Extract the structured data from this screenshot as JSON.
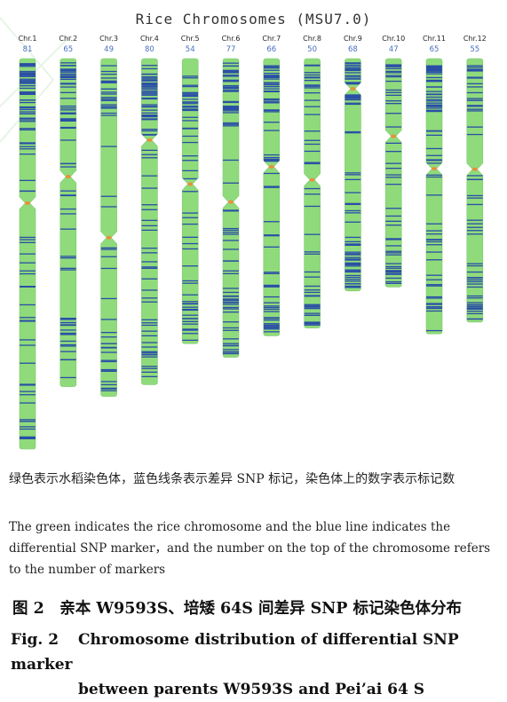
{
  "figure": {
    "title": "Rice Chromosomes (MSU7.0)",
    "chromosome_color": "#8fdb7c",
    "marker_color": "#2b4fa6",
    "centromere_color": "#e8903a"
  },
  "chart_data": {
    "type": "chromosome_ideogram",
    "chromosomes": [
      {
        "name": "Chr.1",
        "count": "81",
        "length": 10,
        "centromere": 0.37
      },
      {
        "name": "Chr.2",
        "count": "65",
        "length": 8.4,
        "centromere": 0.36
      },
      {
        "name": "Chr.3",
        "count": "49",
        "length": 8.65,
        "centromere": 0.53
      },
      {
        "name": "Chr.4",
        "count": "80",
        "length": 8.35,
        "centromere": 0.25
      },
      {
        "name": "Chr.5",
        "count": "54",
        "length": 7.3,
        "centromere": 0.44
      },
      {
        "name": "Chr.6",
        "count": "77",
        "length": 7.65,
        "centromere": 0.48
      },
      {
        "name": "Chr.7",
        "count": "66",
        "length": 7.1,
        "centromere": 0.39
      },
      {
        "name": "Chr.8",
        "count": "50",
        "length": 6.9,
        "centromere": 0.45
      },
      {
        "name": "Chr.9",
        "count": "68",
        "length": 5.95,
        "centromere": 0.13
      },
      {
        "name": "Chr.10",
        "count": "47",
        "length": 5.85,
        "centromere": 0.34
      },
      {
        "name": "Chr.11",
        "count": "65",
        "length": 7.05,
        "centromere": 0.4
      },
      {
        "name": "Chr.12",
        "count": "55",
        "length": 6.75,
        "centromere": 0.42
      }
    ]
  },
  "caption": {
    "cn": "绿色表示水稻染色体，蓝色线条表示差异 SNP 标记，染色体上的数字表示标记数",
    "en": "The green indicates the rice chromosome and the blue line indicates the differential SNP marker，and the number on the top of the chromosome refers to the number of markers"
  },
  "figure_title": {
    "cn": "图 2　亲本 W9593S、培矮 64S 间差异 SNP 标记染色体分布",
    "en_num": "Fig. 2",
    "en_line1": "Chromosome distribution of differential SNP marker",
    "en_line2": "between parents W9593S and Pei’ai 64 S"
  }
}
